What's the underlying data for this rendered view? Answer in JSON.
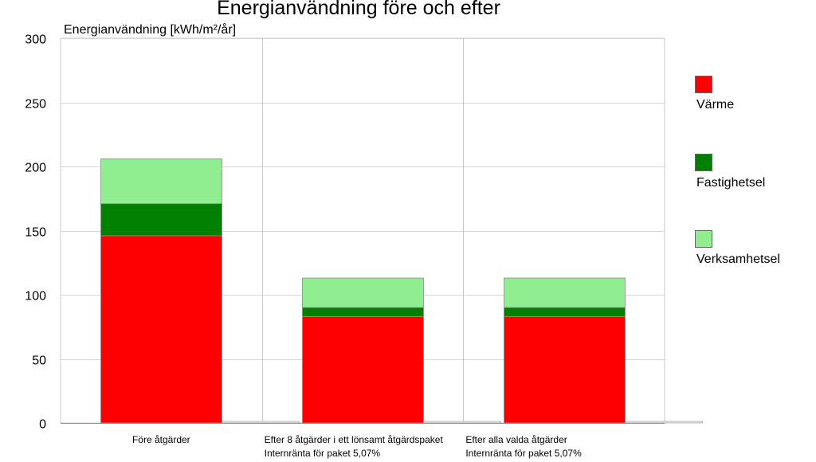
{
  "chart_data": {
    "type": "bar",
    "stacked": true,
    "title": "Energianvändning före och efter",
    "ylabel": "Energianvändning [kWh/m²/år]",
    "ylim": [
      0,
      300
    ],
    "yticks": [
      0,
      50,
      100,
      150,
      200,
      250,
      300
    ],
    "grid": true,
    "legend_position": "right",
    "categories": [
      [
        "Före åtgärder"
      ],
      [
        "Efter 8 åtgärder i ett lönsamt åtgärdspaket",
        "Internränta för paket 5,07%"
      ],
      [
        "Efter alla valda åtgärder",
        "Internränta för paket 5,07%"
      ]
    ],
    "series": [
      {
        "name": "Värme",
        "color": "#ff0000",
        "values": [
          146,
          83,
          83
        ]
      },
      {
        "name": "Fastighetsel",
        "color": "#008000",
        "values": [
          25,
          7,
          7
        ]
      },
      {
        "name": "Verksamhetsel",
        "color": "#90ee90",
        "values": [
          35,
          23,
          23
        ]
      }
    ]
  }
}
